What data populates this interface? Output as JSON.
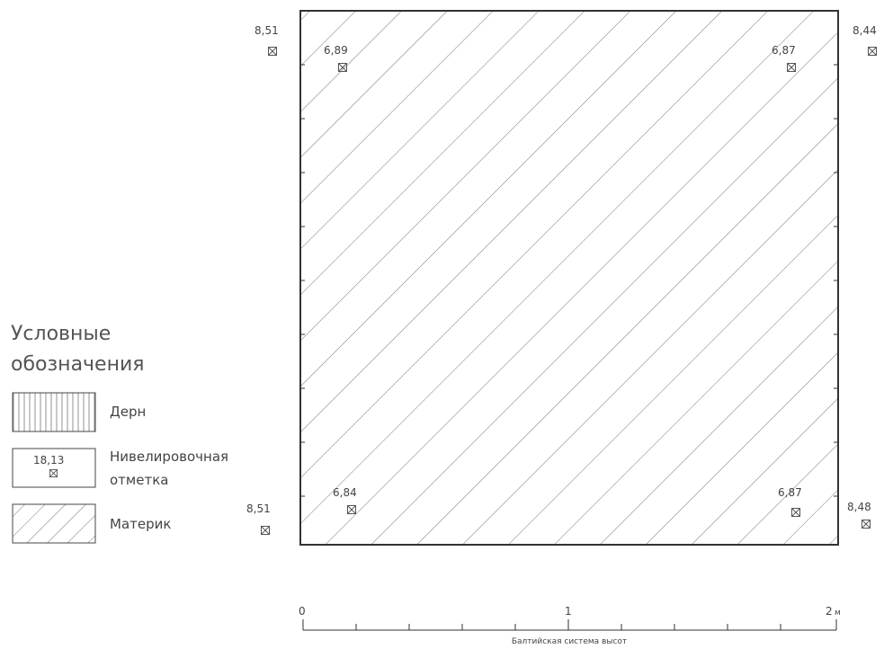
{
  "plan": {
    "outer_marks": {
      "top_left": "8,51",
      "top_right": "8,44",
      "bottom_left": "8,51",
      "bottom_right": "8,48"
    },
    "inner_marks": {
      "top_left": "6,89",
      "top_right": "6,87",
      "bottom_left": "6,84",
      "bottom_right": "6,87"
    }
  },
  "legend": {
    "title_line1": "Условные",
    "title_line2": "обозначения",
    "items": [
      {
        "label": "Дерн",
        "pattern": "vertical-lines"
      },
      {
        "label_line1": "Нивелировочная",
        "label_line2": "отметка",
        "sample_value": "18,13",
        "pattern": "mark"
      },
      {
        "label": "Материк",
        "pattern": "diagonal-lines"
      }
    ]
  },
  "scale": {
    "start": "0",
    "mid": "1",
    "end": "2",
    "unit": "м",
    "caption": "Балтийская система высот"
  }
}
